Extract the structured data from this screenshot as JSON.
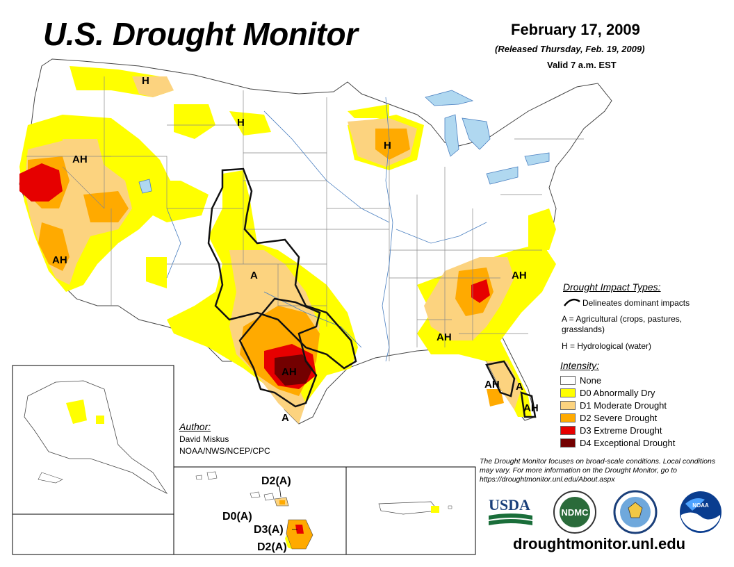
{
  "title": "U.S. Drought Monitor",
  "date": "February 17, 2009",
  "released": "(Released Thursday, Feb. 19, 2009)",
  "valid": "Valid 7 a.m. EST",
  "impact_legend": {
    "heading": "Drought Impact Types:",
    "items": [
      {
        "symbol": "",
        "text": "Delineates dominant impacts"
      },
      {
        "symbol": "A",
        "text": "A = Agricultural (crops, pastures, grasslands)"
      },
      {
        "symbol": "H",
        "text": "H = Hydrological (water)"
      }
    ]
  },
  "intensity_legend": {
    "heading": "Intensity:",
    "items": [
      {
        "label": "None",
        "color": "#ffffff"
      },
      {
        "label": "D0 Abnormally Dry",
        "color": "#ffff00"
      },
      {
        "label": "D1 Moderate Drought",
        "color": "#fcd37f"
      },
      {
        "label": "D2 Severe Drought",
        "color": "#ffaa00"
      },
      {
        "label": "D3 Extreme Drought",
        "color": "#e60000"
      },
      {
        "label": "D4 Exceptional Drought",
        "color": "#730000"
      }
    ]
  },
  "author": {
    "heading": "Author:",
    "name": "David Miskus",
    "org": "NOAA/NWS/NCEP/CPC"
  },
  "disclaimer": "The Drought Monitor focuses on broad-scale conditions. Local conditions may vary. For more information on the Drought Monitor, go to https://droughtmonitor.unl.edu/About.aspx",
  "website": "droughtmonitor.unl.edu",
  "map_labels": {
    "h_montana": "H",
    "h_idaho": "H",
    "h_wisconsin": "H",
    "ah_oregon": "AH",
    "ah_california_north": "AH",
    "ah_california_south": "AH",
    "a_kansas": "A",
    "ah_texas": "AH",
    "a_south_texas": "A",
    "ah_north_carolina": "AH",
    "ah_georgia": "AH",
    "ah_florida_west": "AH",
    "a_florida": "A",
    "ah_florida_south": "AH"
  },
  "hawaii_labels": [
    "D2(A)",
    "D0(A)",
    "D3(A)",
    "D2(A)"
  ],
  "logos": {
    "usda": "USDA",
    "ndmc": "NDMC",
    "noaa": "NOAA"
  },
  "colors": {
    "none": "#ffffff",
    "d0": "#ffff00",
    "d1": "#fcd37f",
    "d2": "#ffaa00",
    "d3": "#e60000",
    "d4": "#730000"
  }
}
